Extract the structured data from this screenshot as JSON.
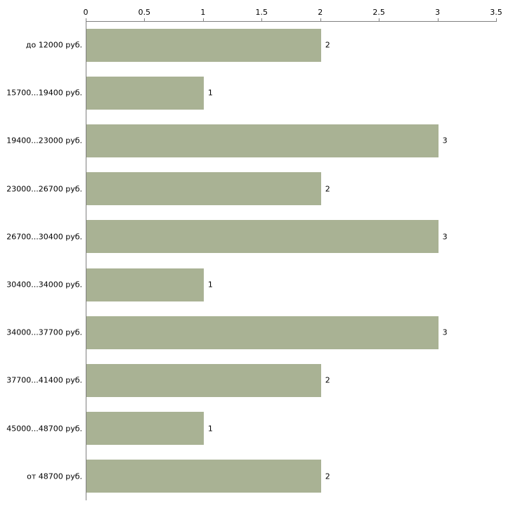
{
  "chart_data": {
    "type": "bar",
    "orientation": "horizontal",
    "title": "",
    "xlabel": "",
    "ylabel": "",
    "categories": [
      "до 12000 руб.",
      "15700...19400 руб.",
      "19400...23000 руб.",
      "23000...26700 руб.",
      "26700...30400 руб.",
      "30400...34000 руб.",
      "34000...37700 руб.",
      "37700...41400 руб.",
      "45000...48700 руб.",
      "от 48700 руб."
    ],
    "values": [
      2,
      1,
      3,
      2,
      3,
      1,
      3,
      2,
      1,
      2
    ],
    "x_tick_labels": [
      "0",
      "0.5",
      "1",
      "1.5",
      "2",
      "2.5",
      "3",
      "3.5"
    ],
    "xlim": [
      0,
      3.5
    ],
    "grid": false,
    "legend": false,
    "bar_color": "#a9b294",
    "axis_color": "#808080",
    "text_color": "#000000"
  }
}
